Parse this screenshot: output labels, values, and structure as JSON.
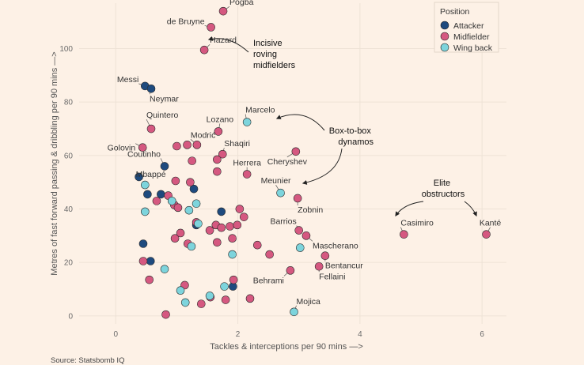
{
  "chart_data": {
    "type": "scatter",
    "xlabel": "Tackles & interceptions per 90 mins —>",
    "ylabel": "Metres of fast forward passing & dribbling per 90 mins —>",
    "xlim": [
      -0.6,
      6.4
    ],
    "ylim": [
      -3,
      117
    ],
    "x_ticks": [
      "0",
      "2",
      "4",
      "6"
    ],
    "x_tick_values": [
      0,
      2,
      4,
      6
    ],
    "y_ticks": [
      "0",
      "20",
      "40",
      "60",
      "80",
      "100"
    ],
    "y_tick_values": [
      0,
      20,
      40,
      60,
      80,
      100
    ],
    "grid": true,
    "legend": {
      "title": "Position",
      "placement": "top-right",
      "entries": [
        {
          "name": "Attacker",
          "color": "#1e4a7e"
        },
        {
          "name": "Midfielder",
          "color": "#d55880"
        },
        {
          "name": "Wing back",
          "color": "#7dd4dc"
        }
      ]
    },
    "source": "Source: Statsbomb IQ",
    "series": [
      {
        "name": "Attacker",
        "color": "#1e4a7e",
        "points": [
          {
            "x": 0.48,
            "y": 86,
            "label": "Messi"
          },
          {
            "x": 0.58,
            "y": 85,
            "label": "Neymar"
          },
          {
            "x": 0.8,
            "y": 56,
            "label": "Coutinho"
          },
          {
            "x": 0.38,
            "y": 52,
            "label": "Mbappé"
          },
          {
            "x": 0.52,
            "y": 45.5
          },
          {
            "x": 0.74,
            "y": 45.5
          },
          {
            "x": 1.28,
            "y": 47.5
          },
          {
            "x": 1.73,
            "y": 39
          },
          {
            "x": 1.32,
            "y": 34
          },
          {
            "x": 0.45,
            "y": 27
          },
          {
            "x": 0.57,
            "y": 20.5
          },
          {
            "x": 1.92,
            "y": 11
          }
        ]
      },
      {
        "name": "Midfielder",
        "color": "#d55880",
        "points": [
          {
            "x": 1.76,
            "y": 114,
            "label": "Pogba"
          },
          {
            "x": 1.56,
            "y": 108,
            "label": "de Bruyne"
          },
          {
            "x": 1.45,
            "y": 99.5,
            "label": "Hazard"
          },
          {
            "x": 0.58,
            "y": 70,
            "label": "Quintero"
          },
          {
            "x": 1.68,
            "y": 69,
            "label": "Lozano"
          },
          {
            "x": 0.44,
            "y": 63,
            "label": "Golovin"
          },
          {
            "x": 1.33,
            "y": 64,
            "label": "Modrić"
          },
          {
            "x": 1.75,
            "y": 60.5,
            "label": "Shaqiri"
          },
          {
            "x": 2.15,
            "y": 53,
            "label": "Herrera"
          },
          {
            "x": 2.95,
            "y": 61.5,
            "label": "Cheryshev"
          },
          {
            "x": 2.98,
            "y": 44,
            "label": "Zobnin"
          },
          {
            "x": 3.0,
            "y": 32,
            "label": "Barrios"
          },
          {
            "x": 3.12,
            "y": 30,
            "label": "Mascherano"
          },
          {
            "x": 3.43,
            "y": 22.5,
            "label": "Bentancur"
          },
          {
            "x": 3.33,
            "y": 18.5,
            "label": "Fellaini"
          },
          {
            "x": 2.86,
            "y": 17,
            "label": "Behrami"
          },
          {
            "x": 4.72,
            "y": 30.5,
            "label": "Casimiro"
          },
          {
            "x": 6.07,
            "y": 30.5,
            "label": "Kanté"
          },
          {
            "x": 1.0,
            "y": 63.5
          },
          {
            "x": 1.17,
            "y": 64
          },
          {
            "x": 1.25,
            "y": 58
          },
          {
            "x": 1.66,
            "y": 58.5
          },
          {
            "x": 1.66,
            "y": 54
          },
          {
            "x": 0.98,
            "y": 50.5
          },
          {
            "x": 1.22,
            "y": 50
          },
          {
            "x": 0.67,
            "y": 43
          },
          {
            "x": 0.86,
            "y": 45
          },
          {
            "x": 0.96,
            "y": 41.5
          },
          {
            "x": 1.02,
            "y": 40.5
          },
          {
            "x": 1.32,
            "y": 35
          },
          {
            "x": 1.54,
            "y": 32
          },
          {
            "x": 1.64,
            "y": 34
          },
          {
            "x": 1.73,
            "y": 33
          },
          {
            "x": 1.87,
            "y": 33.5
          },
          {
            "x": 1.99,
            "y": 34
          },
          {
            "x": 2.03,
            "y": 40
          },
          {
            "x": 2.1,
            "y": 37
          },
          {
            "x": 0.97,
            "y": 29
          },
          {
            "x": 1.06,
            "y": 31
          },
          {
            "x": 1.18,
            "y": 27
          },
          {
            "x": 1.66,
            "y": 27.5
          },
          {
            "x": 1.91,
            "y": 29
          },
          {
            "x": 2.32,
            "y": 26.5
          },
          {
            "x": 2.52,
            "y": 23
          },
          {
            "x": 0.45,
            "y": 20.5
          },
          {
            "x": 0.55,
            "y": 13.5
          },
          {
            "x": 1.13,
            "y": 11.5
          },
          {
            "x": 1.93,
            "y": 13.5
          },
          {
            "x": 1.55,
            "y": 7
          },
          {
            "x": 1.8,
            "y": 6
          },
          {
            "x": 2.2,
            "y": 6.5
          },
          {
            "x": 1.4,
            "y": 4.5
          },
          {
            "x": 0.82,
            "y": 0.5
          }
        ]
      },
      {
        "name": "Wing back",
        "color": "#7dd4dc",
        "points": [
          {
            "x": 2.15,
            "y": 72.5,
            "label": "Marcelo"
          },
          {
            "x": 2.7,
            "y": 46,
            "label": "Meunier"
          },
          {
            "x": 2.92,
            "y": 1.5,
            "label": "Mojica"
          },
          {
            "x": 0.48,
            "y": 49
          },
          {
            "x": 0.48,
            "y": 39
          },
          {
            "x": 1.32,
            "y": 42
          },
          {
            "x": 1.2,
            "y": 39.5
          },
          {
            "x": 0.92,
            "y": 43
          },
          {
            "x": 1.35,
            "y": 34.5
          },
          {
            "x": 1.24,
            "y": 26
          },
          {
            "x": 1.91,
            "y": 23
          },
          {
            "x": 3.02,
            "y": 25.5
          },
          {
            "x": 0.8,
            "y": 17.5
          },
          {
            "x": 1.06,
            "y": 9.5
          },
          {
            "x": 1.14,
            "y": 5
          },
          {
            "x": 1.78,
            "y": 11
          },
          {
            "x": 1.54,
            "y": 7.5
          }
        ]
      }
    ],
    "annotations": [
      {
        "lines": [
          "Incisive",
          "roving",
          "midfielders"
        ]
      },
      {
        "lines": [
          "Box-to-box",
          "dynamos"
        ]
      },
      {
        "lines": [
          "Elite",
          "obstructors"
        ]
      }
    ]
  }
}
